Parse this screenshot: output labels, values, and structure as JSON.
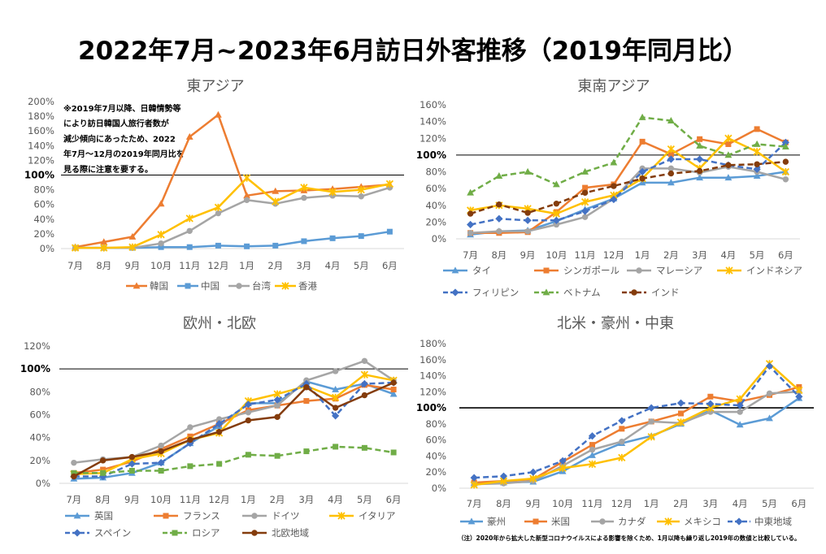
{
  "title": "2022年7月~2023年6月訪日外客推移（2019年同月比）",
  "footnote": "（注）2020年から拡大した新型コロナウイルスによる影響を除くため、1月以降も繰り返し2019年の数値と比較している。",
  "chart_data": [
    {
      "type": "line",
      "title": "東アジア",
      "categories": [
        "7月",
        "8月",
        "9月",
        "10月",
        "11月",
        "12月",
        "1月",
        "2月",
        "3月",
        "4月",
        "5月",
        "6月"
      ],
      "ylim": [
        0,
        200
      ],
      "yticks": [
        {
          "value": 0,
          "label": "0%"
        },
        {
          "value": 20,
          "label": "20%"
        },
        {
          "value": 40,
          "label": "40%"
        },
        {
          "value": 60,
          "label": "60%"
        },
        {
          "value": 80,
          "label": "80%"
        },
        {
          "value": 100,
          "label": "100%"
        },
        {
          "value": 120,
          "label": "120%"
        },
        {
          "value": 140,
          "label": "140%"
        },
        {
          "value": 160,
          "label": "160%"
        },
        {
          "value": 180,
          "label": "180%"
        },
        {
          "value": 200,
          "label": "200%"
        }
      ],
      "reference_line": {
        "value": 100,
        "color": "#000000"
      },
      "grid": false,
      "legend": "bottom",
      "annotation_lines": [
        "※2019年7月以降、日韓情勢等",
        "により訪日韓国人旅行者数が",
        "減少傾向にあったため、2022",
        "年7月～12月の2019年同月比を",
        "見る際に注意を要する。"
      ],
      "series": [
        {
          "name": "韓国",
          "color": "#ED7D31",
          "marker": "triangle",
          "line_style": "solid",
          "values": [
            2,
            9,
            16,
            61,
            152,
            182,
            72,
            78,
            79,
            81,
            84,
            87
          ]
        },
        {
          "name": "中国",
          "color": "#5B9BD5",
          "marker": "square",
          "line_style": "solid",
          "values": [
            1,
            1,
            1,
            2,
            2,
            4,
            3,
            4,
            10,
            14,
            17,
            23
          ]
        },
        {
          "name": "台湾",
          "color": "#A5A5A5",
          "marker": "circle",
          "line_style": "solid",
          "values": [
            1,
            1,
            1,
            7,
            24,
            48,
            66,
            61,
            69,
            72,
            71,
            83
          ]
        },
        {
          "name": "香港",
          "color": "#FFC000",
          "marker": "x",
          "line_style": "solid",
          "values": [
            1,
            1,
            2,
            19,
            41,
            56,
            96,
            64,
            83,
            77,
            80,
            88
          ]
        }
      ]
    },
    {
      "type": "line",
      "title": "東南アジア",
      "categories": [
        "7月",
        "8月",
        "9月",
        "10月",
        "11月",
        "12月",
        "1月",
        "2月",
        "3月",
        "4月",
        "5月",
        "6月"
      ],
      "ylim": [
        0,
        160
      ],
      "yticks": [
        {
          "value": 0,
          "label": "0%"
        },
        {
          "value": 20,
          "label": "20%"
        },
        {
          "value": 40,
          "label": "40%"
        },
        {
          "value": 60,
          "label": "60%"
        },
        {
          "value": 80,
          "label": "80%"
        },
        {
          "value": 100,
          "label": "100%"
        },
        {
          "value": 120,
          "label": "120%"
        },
        {
          "value": 140,
          "label": "140%"
        },
        {
          "value": 160,
          "label": "160%"
        }
      ],
      "reference_line": {
        "value": 100,
        "color": "#000000"
      },
      "grid": false,
      "legend": "bottom",
      "series": [
        {
          "name": "タイ",
          "color": "#5B9BD5",
          "marker": "triangle",
          "line_style": "solid",
          "values": [
            5,
            9,
            10,
            21,
            35,
            48,
            67,
            67,
            73,
            73,
            75,
            80
          ]
        },
        {
          "name": "シンガポール",
          "color": "#ED7D31",
          "marker": "square",
          "line_style": "solid",
          "values": [
            7,
            7,
            8,
            32,
            61,
            65,
            116,
            101,
            119,
            113,
            131,
            115
          ]
        },
        {
          "name": "マレーシア",
          "color": "#A5A5A5",
          "marker": "circle",
          "line_style": "solid",
          "values": [
            7,
            9,
            9,
            17,
            26,
            48,
            84,
            84,
            79,
            86,
            80,
            71
          ]
        },
        {
          "name": "インドネシア",
          "color": "#FFC000",
          "marker": "x",
          "line_style": "solid",
          "values": [
            34,
            40,
            36,
            30,
            44,
            52,
            72,
            107,
            84,
            120,
            104,
            80
          ]
        },
        {
          "name": "フィリピン",
          "color": "#4472C4",
          "marker": "diamond",
          "line_style": "dashed",
          "values": [
            17,
            24,
            22,
            22,
            33,
            47,
            80,
            95,
            95,
            88,
            83,
            115
          ]
        },
        {
          "name": "ベトナム",
          "color": "#70AD47",
          "marker": "triangle",
          "line_style": "dashed",
          "values": [
            55,
            75,
            80,
            65,
            80,
            91,
            145,
            141,
            111,
            100,
            113,
            110
          ]
        },
        {
          "name": "インド",
          "color": "#843C0C",
          "marker": "circle",
          "line_style": "dashed",
          "values": [
            30,
            41,
            31,
            42,
            55,
            63,
            72,
            78,
            81,
            88,
            89,
            92
          ]
        }
      ]
    },
    {
      "type": "line",
      "title": "欧州・北欧",
      "categories": [
        "7月",
        "8月",
        "9月",
        "10月",
        "11月",
        "12月",
        "1月",
        "2月",
        "3月",
        "4月",
        "5月",
        "6月"
      ],
      "ylim": [
        0,
        120
      ],
      "yticks": [
        {
          "value": 0,
          "label": "0%"
        },
        {
          "value": 20,
          "label": "20%"
        },
        {
          "value": 40,
          "label": "40%"
        },
        {
          "value": 60,
          "label": "60%"
        },
        {
          "value": 80,
          "label": "80%"
        },
        {
          "value": 100,
          "label": "100%"
        },
        {
          "value": 120,
          "label": "120%"
        }
      ],
      "reference_line": {
        "value": 100,
        "color": "#000000"
      },
      "grid": false,
      "legend": "bottom",
      "series": [
        {
          "name": "英国",
          "color": "#5B9BD5",
          "marker": "triangle",
          "line_style": "solid",
          "values": [
            4,
            5,
            9,
            18,
            35,
            50,
            70,
            70,
            89,
            82,
            87,
            78
          ]
        },
        {
          "name": "フランス",
          "color": "#ED7D31",
          "marker": "square",
          "line_style": "solid",
          "values": [
            9,
            12,
            19,
            30,
            41,
            52,
            64,
            68,
            72,
            74,
            86,
            82
          ]
        },
        {
          "name": "ドイツ",
          "color": "#A5A5A5",
          "marker": "circle",
          "line_style": "solid",
          "values": [
            18,
            21,
            23,
            33,
            49,
            56,
            62,
            68,
            90,
            98,
            107,
            90
          ]
        },
        {
          "name": "イタリア",
          "color": "#FFC000",
          "marker": "x",
          "line_style": "solid",
          "values": [
            8,
            9,
            21,
            26,
            38,
            44,
            72,
            78,
            85,
            75,
            95,
            90
          ]
        },
        {
          "name": "スペイン",
          "color": "#4472C4",
          "marker": "diamond",
          "line_style": "dashed",
          "values": [
            6,
            6,
            17,
            18,
            35,
            52,
            69,
            73,
            87,
            59,
            87,
            88
          ]
        },
        {
          "name": "ロシア",
          "color": "#70AD47",
          "marker": "square",
          "line_style": "dashed",
          "values": [
            9,
            9,
            11,
            11,
            15,
            17,
            25,
            24,
            28,
            32,
            31,
            27
          ]
        },
        {
          "name": "北欧地域",
          "color": "#843C0C",
          "marker": "circle",
          "line_style": "solid",
          "values": [
            6,
            20,
            23,
            28,
            38,
            45,
            55,
            58,
            84,
            66,
            77,
            88
          ]
        }
      ]
    },
    {
      "type": "line",
      "title": "北米・豪州・中東",
      "categories": [
        "7月",
        "8月",
        "9月",
        "10月",
        "11月",
        "12月",
        "1月",
        "2月",
        "3月",
        "4月",
        "5月",
        "6月"
      ],
      "ylim": [
        0,
        180
      ],
      "yticks": [
        {
          "value": 0,
          "label": "0%"
        },
        {
          "value": 20,
          "label": "20%"
        },
        {
          "value": 40,
          "label": "40%"
        },
        {
          "value": 60,
          "label": "60%"
        },
        {
          "value": 80,
          "label": "80%"
        },
        {
          "value": 100,
          "label": "100%"
        },
        {
          "value": 120,
          "label": "120%"
        },
        {
          "value": 140,
          "label": "140%"
        },
        {
          "value": 160,
          "label": "160%"
        },
        {
          "value": 180,
          "label": "180%"
        }
      ],
      "reference_line": {
        "value": 100,
        "color": "#000000"
      },
      "grid": false,
      "legend": "bottom",
      "series": [
        {
          "name": "豪州",
          "color": "#5B9BD5",
          "marker": "triangle",
          "line_style": "solid",
          "values": [
            6,
            7,
            8,
            21,
            41,
            56,
            65,
            80,
            97,
            79,
            87,
            112
          ]
        },
        {
          "name": "米国",
          "color": "#ED7D31",
          "marker": "square",
          "line_style": "solid",
          "values": [
            7,
            9,
            11,
            33,
            54,
            74,
            83,
            93,
            114,
            108,
            116,
            126
          ]
        },
        {
          "name": "カナダ",
          "color": "#A5A5A5",
          "marker": "circle",
          "line_style": "solid",
          "values": [
            5,
            6,
            9,
            28,
            48,
            58,
            83,
            81,
            95,
            95,
            118,
            120
          ]
        },
        {
          "name": "メキシコ",
          "color": "#FFC000",
          "marker": "x",
          "line_style": "solid",
          "values": [
            4,
            9,
            12,
            25,
            30,
            38,
            64,
            82,
            100,
            111,
            155,
            122
          ]
        },
        {
          "name": "中東地域",
          "color": "#4472C4",
          "marker": "diamond",
          "line_style": "dashed",
          "values": [
            13,
            15,
            20,
            34,
            65,
            84,
            100,
            106,
            105,
            103,
            152,
            114
          ]
        }
      ]
    }
  ]
}
